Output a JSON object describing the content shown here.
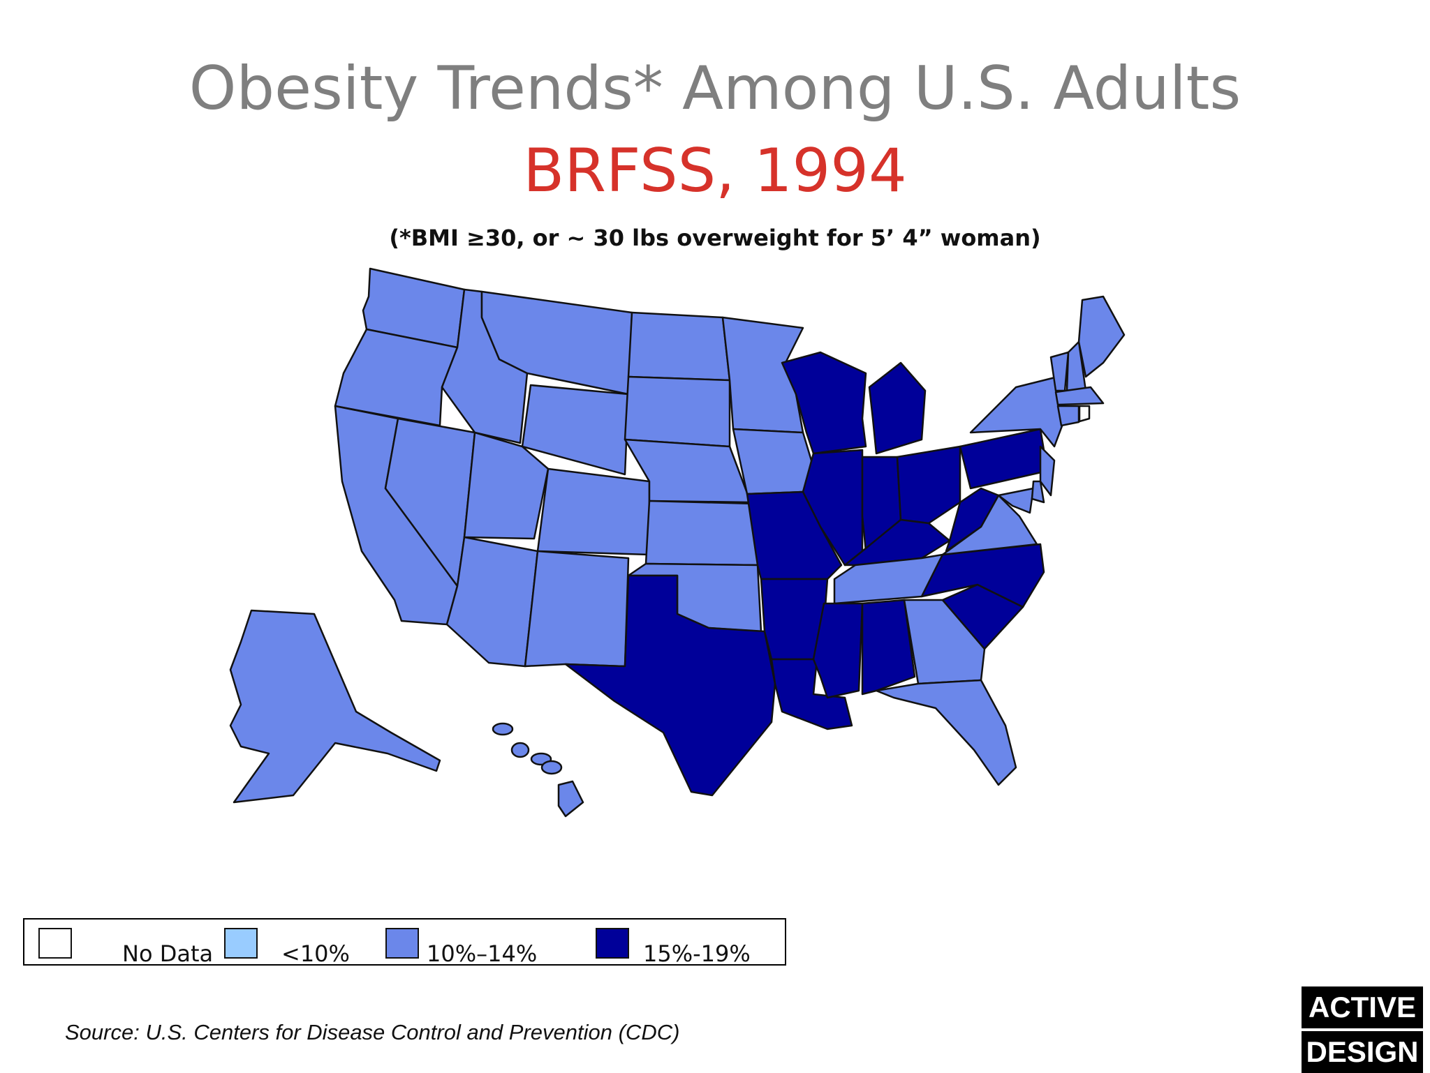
{
  "header": {
    "title": "Obesity Trends* Among U.S. Adults",
    "subtitle": "BRFSS, 1994",
    "footnote": "(*BMI ≥30, or ~ 30 lbs overweight for 5’ 4” woman)"
  },
  "colors": {
    "no_data": "#ffffff",
    "lt10": "#99ccff",
    "r10_14": "#6b87ea",
    "r15_19": "#000099"
  },
  "legend": [
    {
      "label": "No Data",
      "color": "#ffffff"
    },
    {
      "label": "<10%",
      "color": "#99ccff"
    },
    {
      "label": "10%–14%",
      "color": "#6b87ea"
    },
    {
      "label": "15%-19%",
      "color": "#000099"
    }
  ],
  "map_data": {
    "states_10_14": [
      "Washington",
      "Oregon",
      "California",
      "Nevada",
      "Idaho",
      "Montana",
      "Wyoming",
      "Utah",
      "Arizona",
      "Colorado",
      "New Mexico",
      "North Dakota",
      "South Dakota",
      "Nebraska",
      "Kansas",
      "Oklahoma",
      "Minnesota",
      "Iowa",
      "Tennessee",
      "Georgia",
      "Florida",
      "Virginia",
      "Maryland",
      "Delaware",
      "New Jersey",
      "New York",
      "Vermont",
      "New Hampshire",
      "Maine",
      "Massachusetts",
      "Connecticut",
      "Alaska",
      "Hawaii"
    ],
    "states_15_19": [
      "Texas",
      "Missouri",
      "Arkansas",
      "Louisiana",
      "Mississippi",
      "Alabama",
      "Illinois",
      "Wisconsin",
      "Michigan",
      "Indiana",
      "Ohio",
      "Kentucky",
      "West Virginia",
      "Pennsylvania",
      "North Carolina",
      "South Carolina"
    ],
    "states_no_data": [
      "Rhode Island"
    ]
  },
  "source": "Source: U.S. Centers for Disease Control and Prevention (CDC)",
  "logo": {
    "line1": "ACTIVE",
    "line2": "DESIGN"
  }
}
